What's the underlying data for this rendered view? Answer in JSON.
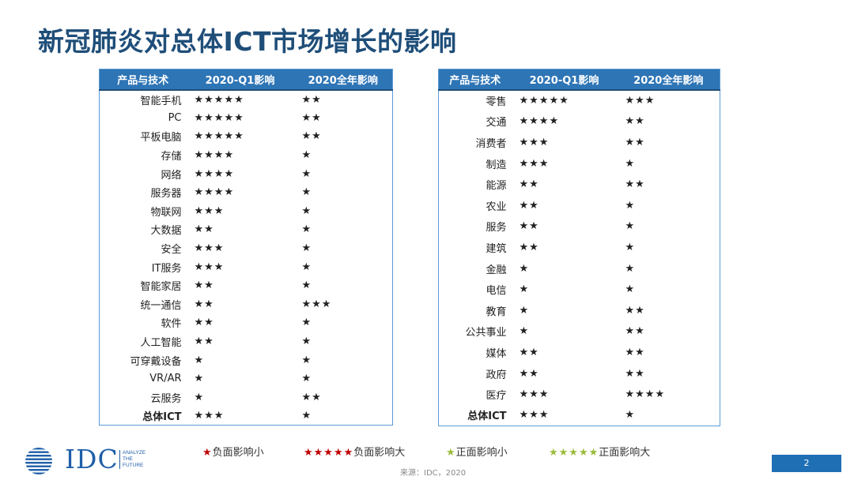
{
  "title": "新冠肺炎对总体ICT市场增长的影响",
  "left_table": {
    "headers": [
      "产品与技术",
      "2020-Q1影响",
      "2020全年影响"
    ],
    "rows": [
      {
        "name": "智能手机",
        "q1": 5,
        "q1_type": "neg",
        "year": 2,
        "year_type": "neg"
      },
      {
        "name": "PC",
        "q1": 5,
        "q1_type": "neg",
        "year": 2,
        "year_type": "neg"
      },
      {
        "name": "平板电脑",
        "q1": 5,
        "q1_type": "neg",
        "year": 2,
        "year_type": "neg"
      },
      {
        "name": "存储",
        "q1": 4,
        "q1_type": "neg",
        "year": 1,
        "year_type": "neg"
      },
      {
        "name": "网络",
        "q1": 4,
        "q1_type": "neg",
        "year": 1,
        "year_type": "neg"
      },
      {
        "name": "服务器",
        "q1": 4,
        "q1_type": "neg",
        "year": 1,
        "year_type": "neg"
      },
      {
        "name": "物联网",
        "q1": 3,
        "q1_type": "neg",
        "year": 1,
        "year_type": "neg"
      },
      {
        "name": "大数据",
        "q1": 2,
        "q1_type": "neg",
        "year": 1,
        "year_type": "neg"
      },
      {
        "name": "安全",
        "q1": 3,
        "q1_type": "neg",
        "year": 1,
        "year_type": "neg"
      },
      {
        "name": "IT服务",
        "q1": 3,
        "q1_type": "neg",
        "year": 1,
        "year_type": "neg"
      },
      {
        "name": "智能家居",
        "q1": 2,
        "q1_type": "neg",
        "year": 1,
        "year_type": "neg"
      },
      {
        "name": "统一通信",
        "q1": 2,
        "q1_type": "pos",
        "year": 3,
        "year_type": "pos"
      },
      {
        "name": "软件",
        "q1": 2,
        "q1_type": "neg",
        "year": 1,
        "year_type": "neg"
      },
      {
        "name": "人工智能",
        "q1": 2,
        "q1_type": "neg",
        "year": 1,
        "year_type": "neg"
      },
      {
        "name": "可穿戴设备",
        "q1": 1,
        "q1_type": "neg",
        "year": 1,
        "year_type": "neg"
      },
      {
        "name": "VR/AR",
        "q1": 1,
        "q1_type": "neg",
        "year": 1,
        "year_type": "neg"
      },
      {
        "name": "云服务",
        "q1": 1,
        "q1_type": "pos",
        "year": 2,
        "year_type": "pos"
      },
      {
        "name": "总体ICT",
        "q1": 3,
        "q1_type": "neg",
        "year": 1,
        "year_type": "neg",
        "total": true
      }
    ]
  },
  "right_table": {
    "headers": [
      "产品与技术",
      "2020-Q1影响",
      "2020全年影响"
    ],
    "rows": [
      {
        "name": "零售",
        "q1": 5,
        "q1_type": "neg",
        "year": 3,
        "year_type": "neg"
      },
      {
        "name": "交通",
        "q1": 4,
        "q1_type": "neg",
        "year": 2,
        "year_type": "neg"
      },
      {
        "name": "消费者",
        "q1": 3,
        "q1_type": "neg",
        "year": 2,
        "year_type": "neg"
      },
      {
        "name": "制造",
        "q1": 3,
        "q1_type": "neg",
        "year": 1,
        "year_type": "neg"
      },
      {
        "name": "能源",
        "q1": 2,
        "q1_type": "neg",
        "year": 2,
        "year_type": "neg"
      },
      {
        "name": "农业",
        "q1": 2,
        "q1_type": "neg",
        "year": 1,
        "year_type": "neg"
      },
      {
        "name": "服务",
        "q1": 2,
        "q1_type": "neg",
        "year": 1,
        "year_type": "neg"
      },
      {
        "name": "建筑",
        "q1": 2,
        "q1_type": "neg",
        "year": 1,
        "year_type": "pos"
      },
      {
        "name": "金融",
        "q1": 1,
        "q1_type": "neg",
        "year": 1,
        "year_type": "pos"
      },
      {
        "name": "电信",
        "q1": 1,
        "q1_type": "pos",
        "year": 1,
        "year_type": "pos"
      },
      {
        "name": "教育",
        "q1": 1,
        "q1_type": "pos",
        "year": 2,
        "year_type": "pos"
      },
      {
        "name": "公共事业",
        "q1": 1,
        "q1_type": "pos",
        "year": 2,
        "year_type": "pos"
      },
      {
        "name": "媒体",
        "q1": 2,
        "q1_type": "pos",
        "year": 2,
        "year_type": "pos"
      },
      {
        "name": "政府",
        "q1": 2,
        "q1_type": "pos",
        "year": 2,
        "year_type": "pos"
      },
      {
        "name": "医疗",
        "q1": 3,
        "q1_type": "pos",
        "year": 4,
        "year_type": "pos"
      },
      {
        "name": "总体ICT",
        "q1": 3,
        "q1_type": "neg",
        "year": 1,
        "year_type": "neg",
        "total": true
      }
    ]
  },
  "legend": [
    {
      "stars": 1,
      "type": "neg",
      "label": "负面影响小"
    },
    {
      "stars": 5,
      "type": "neg",
      "label": "负面影响大"
    },
    {
      "stars": 1,
      "type": "pos",
      "label": "正面影响小"
    },
    {
      "stars": 5,
      "type": "pos",
      "label": "正面影响大"
    }
  ],
  "colors": {
    "negative": "#c00000",
    "positive": "#9bbb3b",
    "header": "#2e75b6",
    "title": "#1f4e79"
  },
  "logo": {
    "text": "IDC",
    "tagline": [
      "ANALYZE",
      "THE",
      "FUTURE"
    ]
  },
  "source": "来源：IDC，2020",
  "page_number": "2"
}
